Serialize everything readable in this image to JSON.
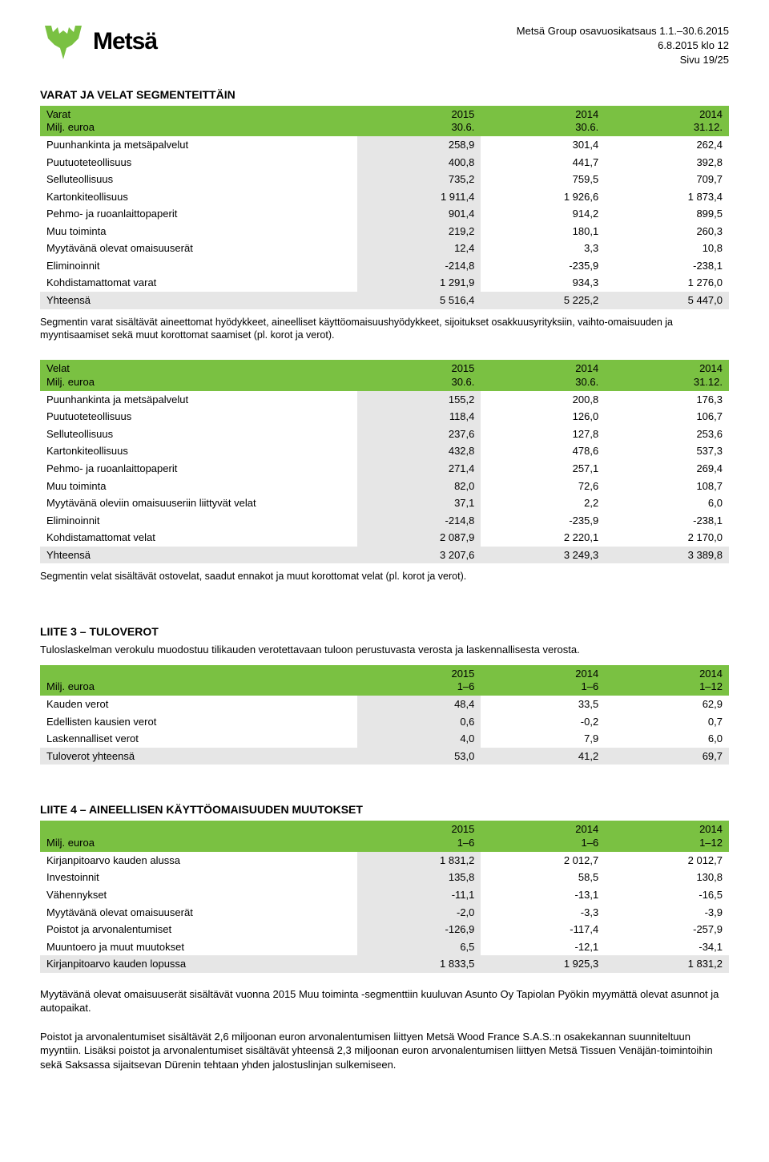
{
  "header": {
    "brand": "Metsä",
    "line1": "Metsä Group osavuosikatsaus 1.1.–30.6.2015",
    "line2": "6.8.2015 klo 12",
    "line3": "Sivu 19/25"
  },
  "colors": {
    "accent": "#7ac142",
    "shade": "#e6e6e6"
  },
  "section1": {
    "title": "VARAT JA VELAT SEGMENTEITTÄIN",
    "table1": {
      "head_label1": "Varat",
      "head_label2": "Milj. euroa",
      "head_c1a": "2015",
      "head_c1b": "30.6.",
      "head_c2a": "2014",
      "head_c2b": "30.6.",
      "head_c3a": "2014",
      "head_c3b": "31.12.",
      "rows": [
        {
          "l": "Puunhankinta ja metsäpalvelut",
          "a": "258,9",
          "b": "301,4",
          "c": "262,4"
        },
        {
          "l": "Puutuoteteollisuus",
          "a": "400,8",
          "b": "441,7",
          "c": "392,8"
        },
        {
          "l": "Selluteollisuus",
          "a": "735,2",
          "b": "759,5",
          "c": "709,7"
        },
        {
          "l": "Kartonkiteollisuus",
          "a": "1 911,4",
          "b": "1 926,6",
          "c": "1 873,4"
        },
        {
          "l": "Pehmo- ja ruoanlaittopaperit",
          "a": "901,4",
          "b": "914,2",
          "c": "899,5"
        },
        {
          "l": "Muu toiminta",
          "a": "219,2",
          "b": "180,1",
          "c": "260,3"
        },
        {
          "l": "Myytävänä olevat omaisuuserät",
          "a": "12,4",
          "b": "3,3",
          "c": "10,8"
        },
        {
          "l": "Eliminoinnit",
          "a": "-214,8",
          "b": "-235,9",
          "c": "-238,1"
        },
        {
          "l": "Kohdistamattomat varat",
          "a": "1 291,9",
          "b": "934,3",
          "c": "1 276,0"
        }
      ],
      "total": {
        "l": "Yhteensä",
        "a": "5 516,4",
        "b": "5 225,2",
        "c": "5 447,0"
      }
    },
    "note1": "Segmentin varat sisältävät aineettomat hyödykkeet, aineelliset käyttöomaisuushyödykkeet, sijoitukset osakkuusyrityksiin, vaihto-omaisuuden ja myyntisaamiset sekä muut korottomat saamiset (pl. korot ja verot).",
    "table2": {
      "head_label1": "Velat",
      "head_label2": "Milj. euroa",
      "head_c1a": "2015",
      "head_c1b": "30.6.",
      "head_c2a": "2014",
      "head_c2b": "30.6.",
      "head_c3a": "2014",
      "head_c3b": "31.12.",
      "rows": [
        {
          "l": "Puunhankinta ja metsäpalvelut",
          "a": "155,2",
          "b": "200,8",
          "c": "176,3"
        },
        {
          "l": "Puutuoteteollisuus",
          "a": "118,4",
          "b": "126,0",
          "c": "106,7"
        },
        {
          "l": "Selluteollisuus",
          "a": "237,6",
          "b": "127,8",
          "c": "253,6"
        },
        {
          "l": "Kartonkiteollisuus",
          "a": "432,8",
          "b": "478,6",
          "c": "537,3"
        },
        {
          "l": "Pehmo- ja ruoanlaittopaperit",
          "a": "271,4",
          "b": "257,1",
          "c": "269,4"
        },
        {
          "l": "Muu toiminta",
          "a": "82,0",
          "b": "72,6",
          "c": "108,7"
        },
        {
          "l": "Myytävänä oleviin omaisuuseriin liittyvät velat",
          "a": "37,1",
          "b": "2,2",
          "c": "6,0"
        },
        {
          "l": "Eliminoinnit",
          "a": "-214,8",
          "b": "-235,9",
          "c": "-238,1"
        },
        {
          "l": "Kohdistamattomat velat",
          "a": "2 087,9",
          "b": "2 220,1",
          "c": "2 170,0"
        }
      ],
      "total": {
        "l": "Yhteensä",
        "a": "3 207,6",
        "b": "3 249,3",
        "c": "3 389,8"
      }
    },
    "note2": "Segmentin velat sisältävät ostovelat, saadut ennakot ja muut korottomat velat (pl. korot ja verot)."
  },
  "section2": {
    "title": "LIITE 3 – TULOVEROT",
    "subtitle": "Tuloslaskelman verokulu muodostuu tilikauden verotettavaan tuloon perustuvasta verosta ja laskennallisesta verosta.",
    "table": {
      "head_label2": "Milj. euroa",
      "head_c1a": "2015",
      "head_c1b": "1–6",
      "head_c2a": "2014",
      "head_c2b": "1–6",
      "head_c3a": "2014",
      "head_c3b": "1–12",
      "rows": [
        {
          "l": "Kauden verot",
          "a": "48,4",
          "b": "33,5",
          "c": "62,9"
        },
        {
          "l": "Edellisten kausien verot",
          "a": "0,6",
          "b": "-0,2",
          "c": "0,7"
        },
        {
          "l": "Laskennalliset verot",
          "a": "4,0",
          "b": "7,9",
          "c": "6,0"
        }
      ],
      "total": {
        "l": "Tuloverot yhteensä",
        "a": "53,0",
        "b": "41,2",
        "c": "69,7"
      }
    }
  },
  "section3": {
    "title": "LIITE 4 – AINEELLISEN KÄYTTÖOMAISUUDEN MUUTOKSET",
    "table": {
      "head_label2": "Milj. euroa",
      "head_c1a": "2015",
      "head_c1b": "1–6",
      "head_c2a": "2014",
      "head_c2b": "1–6",
      "head_c3a": "2014",
      "head_c3b": "1–12",
      "rows": [
        {
          "l": "Kirjanpitoarvo kauden alussa",
          "a": "1 831,2",
          "b": "2 012,7",
          "c": "2 012,7"
        },
        {
          "l": "Investoinnit",
          "a": "135,8",
          "b": "58,5",
          "c": "130,8"
        },
        {
          "l": "Vähennykset",
          "a": "-11,1",
          "b": "-13,1",
          "c": "-16,5"
        },
        {
          "l": "Myytävänä olevat omaisuuserät",
          "a": "-2,0",
          "b": "-3,3",
          "c": "-3,9"
        },
        {
          "l": "Poistot ja arvonalentumiset",
          "a": "-126,9",
          "b": "-117,4",
          "c": "-257,9"
        },
        {
          "l": "Muuntoero ja muut muutokset",
          "a": "6,5",
          "b": "-12,1",
          "c": "-34,1"
        }
      ],
      "total": {
        "l": "Kirjanpitoarvo kauden lopussa",
        "a": "1 833,5",
        "b": "1 925,3",
        "c": "1 831,2"
      }
    },
    "p1": "Myytävänä olevat omaisuuserät sisältävät vuonna 2015 Muu toiminta -segmenttiin kuuluvan Asunto Oy Tapiolan Pyökin myymättä olevat asunnot ja autopaikat.",
    "p2": "Poistot ja arvonalentumiset sisältävät 2,6 miljoonan euron arvonalentumisen liittyen Metsä Wood France S.A.S.:n osakekannan suunniteltuun myyntiin. Lisäksi poistot ja arvonalentumiset sisältävät yhteensä 2,3 miljoonan euron arvonalentumisen liittyen Metsä Tissuen Venäjän-toimintoihin sekä Saksassa sijaitsevan Dürenin tehtaan yhden jalostuslinjan sulkemiseen."
  }
}
